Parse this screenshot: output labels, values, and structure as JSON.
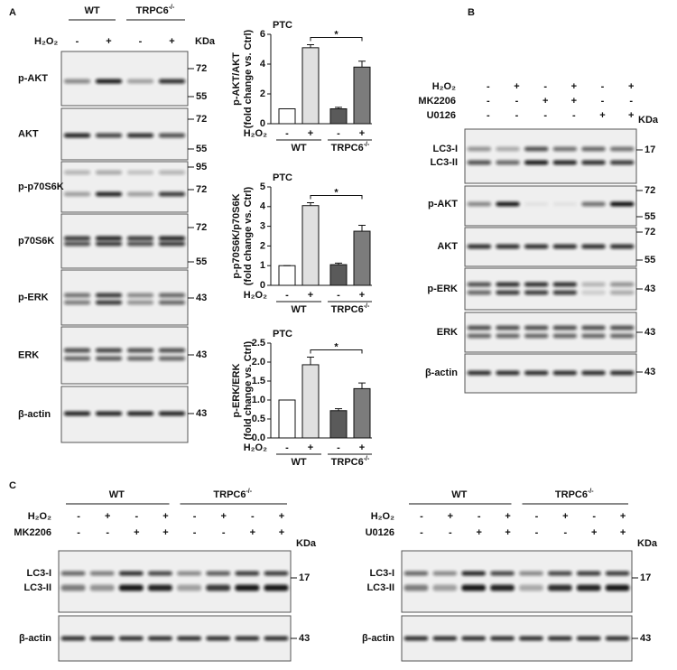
{
  "panel_a": {
    "label": "A",
    "wt": "WT",
    "trpc6": {
      "base": "TRPC6",
      "sup": "-/-"
    },
    "treatment": "H₂O₂",
    "lanes": [
      "-",
      "+",
      "-",
      "+"
    ],
    "kda": "KDa",
    "blots": [
      {
        "name": "p-AKT",
        "markers": [
          72,
          55
        ]
      },
      {
        "name": "AKT",
        "markers": [
          72,
          55
        ]
      },
      {
        "name": "p-p70S6K",
        "markers": [
          95,
          72
        ]
      },
      {
        "name": "p70S6K",
        "markers": [
          72,
          55
        ]
      },
      {
        "name": "p-ERK",
        "markers": [
          43
        ]
      },
      {
        "name": "ERK",
        "markers": [
          43
        ]
      },
      {
        "name": "β-actin",
        "markers": [
          43
        ]
      }
    ]
  },
  "panel_b": {
    "label": "B",
    "kda": "KDa",
    "rows": [
      {
        "name": "H₂O₂",
        "signs": [
          "-",
          "+",
          "-",
          "+",
          "-",
          "+"
        ]
      },
      {
        "name": "MK2206",
        "signs": [
          "-",
          "-",
          "+",
          "+",
          "-",
          "-"
        ]
      },
      {
        "name": "U0126",
        "signs": [
          "-",
          "-",
          "-",
          "-",
          "+",
          "+"
        ]
      }
    ],
    "blots": [
      {
        "names": [
          "LC3-I",
          "LC3-II"
        ],
        "markers": [
          17
        ]
      },
      {
        "names": [
          "p-AKT"
        ],
        "markers": [
          72,
          55
        ]
      },
      {
        "names": [
          "AKT"
        ],
        "markers": [
          72,
          55
        ]
      },
      {
        "names": [
          "p-ERK"
        ],
        "markers": [
          43
        ]
      },
      {
        "names": [
          "ERK"
        ],
        "markers": [
          43
        ]
      },
      {
        "names": [
          "β-actin"
        ],
        "markers": [
          43
        ]
      }
    ]
  },
  "panel_c": {
    "label": "C",
    "blots": [
      {
        "wt": "WT",
        "trpc6": {
          "base": "TRPC6",
          "sup": "-/-"
        },
        "kda": "KDa",
        "rows": [
          {
            "name": "H₂O₂",
            "signs": [
              "-",
              "+",
              "-",
              "+",
              "-",
              "+",
              "-",
              "+"
            ]
          },
          {
            "name": "MK2206",
            "signs": [
              "-",
              "-",
              "+",
              "+",
              "-",
              "-",
              "+",
              "+"
            ]
          }
        ],
        "lc3": [
          "LC3-I",
          "LC3-II"
        ],
        "lc3_marker": 17,
        "actin": "β-actin",
        "actin_marker": 43
      },
      {
        "wt": "WT",
        "trpc6": {
          "base": "TRPC6",
          "sup": "-/-"
        },
        "kda": "KDa",
        "rows": [
          {
            "name": "H₂O₂",
            "signs": [
              "-",
              "+",
              "-",
              "+",
              "-",
              "+",
              "-",
              "+"
            ]
          },
          {
            "name": "U0126",
            "signs": [
              "-",
              "-",
              "+",
              "+",
              "-",
              "-",
              "+",
              "+"
            ]
          }
        ],
        "lc3": [
          "LC3-I",
          "LC3-II"
        ],
        "lc3_marker": 17,
        "actin": "β-actin",
        "actin_marker": 43
      }
    ]
  },
  "chart_data": [
    {
      "type": "bar",
      "title": "PTC",
      "ylabel": [
        "p-AKT/AKT",
        "(fold change vs. Ctrl)"
      ],
      "ylim": [
        0,
        6
      ],
      "yticks": [
        0,
        2,
        4,
        6
      ],
      "x_row_label": "H₂O₂",
      "categories": [
        "-",
        "+",
        "-",
        "+"
      ],
      "groups": [
        "WT",
        {
          "base": "TRPC6",
          "sup": "-/-"
        }
      ],
      "values": [
        1,
        5.1,
        1.0,
        3.8
      ],
      "errors": [
        0,
        0.2,
        0.1,
        0.4
      ],
      "colors": [
        "#ffffff",
        "#e0e0e0",
        "#5a5a5a",
        "#7c7c7c"
      ],
      "significance": "*"
    },
    {
      "type": "bar",
      "title": "PTC",
      "ylabel": [
        "p-p70S6K/p70S6K",
        "(fold change vs. Ctrl)"
      ],
      "ylim": [
        0,
        5
      ],
      "yticks": [
        0,
        1,
        2,
        3,
        4,
        5
      ],
      "x_row_label": "H₂O₂",
      "categories": [
        "-",
        "+",
        "-",
        "+"
      ],
      "groups": [
        "WT",
        {
          "base": "TRPC6",
          "sup": "-/-"
        }
      ],
      "values": [
        1,
        4.05,
        1.05,
        2.75
      ],
      "errors": [
        0,
        0.15,
        0.08,
        0.3
      ],
      "colors": [
        "#ffffff",
        "#e0e0e0",
        "#5a5a5a",
        "#7c7c7c"
      ],
      "significance": "*"
    },
    {
      "type": "bar",
      "title": "PTC",
      "ylabel": [
        "p-ERK/ERK",
        "(fold change vs. Ctrl)"
      ],
      "ylim": [
        0,
        2.5
      ],
      "yticks": [
        {
          "value": 0,
          "label": "0.0"
        },
        0.5,
        {
          "value": 1,
          "label": "1.0"
        },
        1.5,
        {
          "value": 2,
          "label": "2.0"
        },
        2.5
      ],
      "x_row_label": "H₂O₂",
      "categories": [
        "-",
        "+",
        "-",
        "+"
      ],
      "groups": [
        "WT",
        {
          "base": "TRPC6",
          "sup": "-/-"
        }
      ],
      "values": [
        1,
        1.93,
        0.72,
        1.3
      ],
      "errors": [
        0,
        0.2,
        0.05,
        0.15
      ],
      "colors": [
        "#ffffff",
        "#e0e0e0",
        "#5a5a5a",
        "#7c7c7c"
      ],
      "significance": "*"
    }
  ]
}
